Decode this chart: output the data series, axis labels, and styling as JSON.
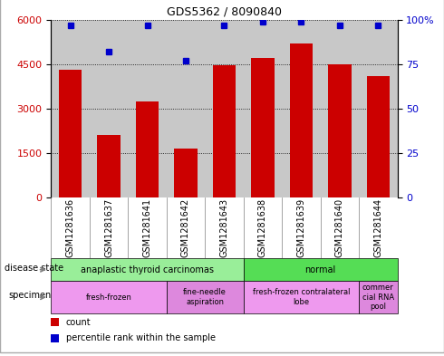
{
  "title": "GDS5362 / 8090840",
  "samples": [
    "GSM1281636",
    "GSM1281637",
    "GSM1281641",
    "GSM1281642",
    "GSM1281643",
    "GSM1281638",
    "GSM1281639",
    "GSM1281640",
    "GSM1281644"
  ],
  "counts": [
    4300,
    2100,
    3250,
    1650,
    4450,
    4700,
    5200,
    4500,
    4100
  ],
  "percentile_ranks": [
    97,
    82,
    97,
    77,
    97,
    99,
    99,
    97,
    97
  ],
  "ylim_left": [
    0,
    6000
  ],
  "ylim_right": [
    0,
    100
  ],
  "yticks_left": [
    0,
    1500,
    3000,
    4500,
    6000
  ],
  "yticks_right": [
    0,
    25,
    50,
    75,
    100
  ],
  "bar_color": "#cc0000",
  "dot_color": "#0000cc",
  "plot_bg_color": "#c8c8c8",
  "tick_label_color_left": "#cc0000",
  "tick_label_color_right": "#0000cc",
  "disease_state_items": [
    {
      "label": "anaplastic thyroid carcinomas",
      "span": [
        0,
        5
      ],
      "color": "#99ee99"
    },
    {
      "label": "normal",
      "span": [
        5,
        9
      ],
      "color": "#55dd55"
    }
  ],
  "specimen_items": [
    {
      "label": "fresh-frozen",
      "span": [
        0,
        3
      ],
      "color": "#ee99ee"
    },
    {
      "label": "fine-needle\naspiration",
      "span": [
        3,
        5
      ],
      "color": "#dd88dd"
    },
    {
      "label": "fresh-frozen contralateral\nlobe",
      "span": [
        5,
        8
      ],
      "color": "#ee99ee"
    },
    {
      "label": "commer\ncial RNA\npool",
      "span": [
        8,
        9
      ],
      "color": "#dd88dd"
    }
  ],
  "legend_count_color": "#cc0000",
  "legend_dot_color": "#0000cc"
}
